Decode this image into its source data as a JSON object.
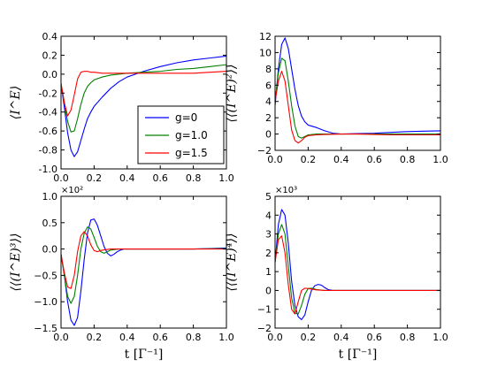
{
  "chart_data": [
    {
      "type": "line",
      "ylabel": "⟨I^E⟩",
      "xlabel": "",
      "xlim": [
        0,
        1.0
      ],
      "ylim": [
        -1.0,
        0.4
      ],
      "xticks": [
        "0.0",
        "0.2",
        "0.4",
        "0.6",
        "0.8",
        "1.0"
      ],
      "yticks": [
        "-1.0",
        "-0.8",
        "-0.6",
        "-0.4",
        "-0.2",
        "0.0",
        "0.2",
        "0.4"
      ],
      "legend": {
        "placement": "lower-right",
        "entries": [
          "g=0",
          "g=1.0",
          "g=1.5"
        ]
      },
      "series": [
        {
          "name": "g=0",
          "color": "#0000ff",
          "x": [
            0,
            0.02,
            0.04,
            0.06,
            0.08,
            0.1,
            0.12,
            0.14,
            0.16,
            0.18,
            0.2,
            0.25,
            0.3,
            0.35,
            0.4,
            0.45,
            0.5,
            0.6,
            0.7,
            0.8,
            0.9,
            1.0
          ],
          "y": [
            -0.1,
            -0.35,
            -0.62,
            -0.8,
            -0.87,
            -0.82,
            -0.7,
            -0.58,
            -0.47,
            -0.4,
            -0.34,
            -0.24,
            -0.15,
            -0.08,
            -0.03,
            0.0,
            0.03,
            0.08,
            0.12,
            0.15,
            0.17,
            0.19
          ]
        },
        {
          "name": "g=1.0",
          "color": "#008000",
          "x": [
            0,
            0.02,
            0.04,
            0.06,
            0.08,
            0.1,
            0.12,
            0.14,
            0.16,
            0.18,
            0.2,
            0.25,
            0.3,
            0.4,
            0.5,
            0.6,
            0.7,
            0.8,
            0.9,
            1.0
          ],
          "y": [
            -0.1,
            -0.3,
            -0.5,
            -0.61,
            -0.6,
            -0.47,
            -0.32,
            -0.2,
            -0.13,
            -0.09,
            -0.06,
            -0.03,
            -0.01,
            0.01,
            0.02,
            0.03,
            0.05,
            0.06,
            0.08,
            0.1
          ]
        },
        {
          "name": "g=1.5",
          "color": "#ff0000",
          "x": [
            0,
            0.02,
            0.04,
            0.06,
            0.08,
            0.1,
            0.12,
            0.14,
            0.16,
            0.18,
            0.2,
            0.25,
            0.3,
            0.4,
            0.5,
            0.6,
            0.7,
            0.8,
            0.9,
            1.0
          ],
          "y": [
            -0.1,
            -0.3,
            -0.44,
            -0.38,
            -0.22,
            -0.05,
            0.02,
            0.03,
            0.03,
            0.02,
            0.02,
            0.01,
            0.01,
            0.01,
            0.01,
            0.01,
            0.01,
            0.01,
            0.02,
            0.03
          ]
        }
      ]
    },
    {
      "type": "line",
      "ylabel": "⟨⟨(I^E)²⟩⟩",
      "xlabel": "",
      "xlim": [
        0,
        1.0
      ],
      "ylim": [
        -2,
        12
      ],
      "xticks": [
        "0.0",
        "0.2",
        "0.4",
        "0.6",
        "0.8",
        "1.0"
      ],
      "yticks": [
        "−2",
        "0",
        "2",
        "4",
        "6",
        "8",
        "10",
        "12"
      ],
      "series": [
        {
          "name": "g=0",
          "color": "#0000ff",
          "x": [
            0,
            0.02,
            0.04,
            0.06,
            0.08,
            0.1,
            0.12,
            0.14,
            0.16,
            0.18,
            0.2,
            0.25,
            0.3,
            0.35,
            0.4,
            0.5,
            0.6,
            0.7,
            0.8,
            0.9,
            1.0
          ],
          "y": [
            3.5,
            8.0,
            11.0,
            11.8,
            10.5,
            8.0,
            5.5,
            3.5,
            2.2,
            1.5,
            1.1,
            0.8,
            0.4,
            0.1,
            0.0,
            0.05,
            0.1,
            0.2,
            0.3,
            0.35,
            0.4
          ]
        },
        {
          "name": "g=1.0",
          "color": "#008000",
          "x": [
            0,
            0.02,
            0.04,
            0.06,
            0.08,
            0.1,
            0.12,
            0.14,
            0.16,
            0.18,
            0.2,
            0.25,
            0.3,
            0.4,
            0.5,
            0.6,
            0.7,
            0.8,
            0.9,
            1.0
          ],
          "y": [
            4.0,
            7.5,
            9.3,
            9.0,
            6.5,
            3.5,
            1.0,
            -0.3,
            -0.5,
            -0.3,
            -0.1,
            0.0,
            0.0,
            0.0,
            0.0,
            0.0,
            0.0,
            0.0,
            0.0,
            0.0
          ]
        },
        {
          "name": "g=1.5",
          "color": "#ff0000",
          "x": [
            0,
            0.02,
            0.04,
            0.06,
            0.08,
            0.1,
            0.12,
            0.14,
            0.16,
            0.18,
            0.2,
            0.25,
            0.3,
            0.4,
            0.5,
            0.6,
            0.7,
            0.8,
            0.9,
            1.0
          ],
          "y": [
            4.0,
            6.5,
            7.7,
            6.5,
            3.5,
            0.5,
            -0.8,
            -1.1,
            -0.8,
            -0.4,
            -0.2,
            -0.1,
            -0.05,
            0.0,
            0.0,
            -0.05,
            -0.1,
            -0.1,
            -0.1,
            -0.1
          ]
        }
      ]
    },
    {
      "type": "line",
      "ylabel": "⟨⟨(I^E)³⟩⟩",
      "xlabel": "t  [Γ⁻¹]",
      "multiplier": "×10²",
      "xlim": [
        0,
        1.0
      ],
      "ylim": [
        -1.5,
        1.0
      ],
      "xticks": [
        "0.0",
        "0.2",
        "0.4",
        "0.6",
        "0.8",
        "1.0"
      ],
      "yticks": [
        "−1.5",
        "−1.0",
        "−0.5",
        "0.0",
        "0.5",
        "1.0"
      ],
      "series": [
        {
          "name": "g=0",
          "color": "#0000ff",
          "x": [
            0,
            0.02,
            0.04,
            0.06,
            0.08,
            0.1,
            0.12,
            0.14,
            0.16,
            0.18,
            0.2,
            0.22,
            0.24,
            0.26,
            0.28,
            0.3,
            0.32,
            0.34,
            0.36,
            0.38,
            0.4,
            0.45,
            0.5,
            0.6,
            0.7,
            0.8,
            0.9,
            1.0
          ],
          "y": [
            -0.1,
            -0.5,
            -1.0,
            -1.35,
            -1.45,
            -1.3,
            -0.8,
            -0.2,
            0.3,
            0.55,
            0.57,
            0.45,
            0.25,
            0.05,
            -0.08,
            -0.13,
            -0.1,
            -0.05,
            -0.02,
            0.0,
            0.0,
            0.0,
            0.0,
            0.0,
            0.0,
            0.0,
            0.01,
            0.02
          ]
        },
        {
          "name": "g=1.0",
          "color": "#008000",
          "x": [
            0,
            0.02,
            0.04,
            0.06,
            0.08,
            0.1,
            0.12,
            0.14,
            0.16,
            0.18,
            0.2,
            0.22,
            0.24,
            0.26,
            0.28,
            0.3,
            0.35,
            0.4,
            0.5,
            0.6,
            0.8,
            1.0
          ],
          "y": [
            -0.1,
            -0.5,
            -0.9,
            -1.03,
            -0.9,
            -0.5,
            0.0,
            0.3,
            0.42,
            0.38,
            0.22,
            0.05,
            -0.05,
            -0.08,
            -0.05,
            -0.02,
            0.0,
            0.0,
            0.0,
            0.0,
            0.0,
            0.01
          ]
        },
        {
          "name": "g=1.5",
          "color": "#ff0000",
          "x": [
            0,
            0.02,
            0.04,
            0.06,
            0.08,
            0.1,
            0.12,
            0.14,
            0.16,
            0.18,
            0.2,
            0.22,
            0.25,
            0.3,
            0.4,
            0.5,
            0.6,
            0.8,
            1.0
          ],
          "y": [
            -0.1,
            -0.45,
            -0.72,
            -0.75,
            -0.5,
            -0.05,
            0.25,
            0.33,
            0.25,
            0.08,
            -0.03,
            -0.05,
            -0.02,
            0.0,
            0.0,
            0.0,
            0.0,
            0.0,
            0.0
          ]
        }
      ]
    },
    {
      "type": "line",
      "ylabel": "⟨⟨(I^E)⁴⟩⟩",
      "xlabel": "t  [Γ⁻¹]",
      "multiplier": "×10³",
      "xlim": [
        0,
        1.0
      ],
      "ylim": [
        -2,
        5
      ],
      "xticks": [
        "0.0",
        "0.2",
        "0.4",
        "0.6",
        "0.8",
        "1.0"
      ],
      "yticks": [
        "−2",
        "−1",
        "0",
        "1",
        "2",
        "3",
        "4",
        "5"
      ],
      "series": [
        {
          "name": "g=0",
          "color": "#0000ff",
          "x": [
            0,
            0.02,
            0.04,
            0.06,
            0.08,
            0.1,
            0.12,
            0.14,
            0.16,
            0.18,
            0.2,
            0.22,
            0.24,
            0.26,
            0.28,
            0.3,
            0.32,
            0.35,
            0.4,
            0.5,
            0.6,
            0.8,
            1.0
          ],
          "y": [
            1.5,
            3.5,
            4.3,
            4.0,
            2.5,
            0.5,
            -0.8,
            -1.4,
            -1.55,
            -1.3,
            -0.6,
            0.0,
            0.25,
            0.32,
            0.28,
            0.15,
            0.05,
            0.0,
            0.0,
            0.0,
            0.0,
            0.0,
            0.0
          ]
        },
        {
          "name": "g=1.0",
          "color": "#008000",
          "x": [
            0,
            0.02,
            0.04,
            0.06,
            0.08,
            0.1,
            0.12,
            0.14,
            0.16,
            0.18,
            0.2,
            0.22,
            0.25,
            0.3,
            0.4,
            0.5,
            0.6,
            0.8,
            1.0
          ],
          "y": [
            1.5,
            3.0,
            3.5,
            3.0,
            1.3,
            -0.4,
            -1.2,
            -1.25,
            -0.8,
            -0.2,
            0.1,
            0.12,
            0.05,
            0.0,
            0.0,
            0.0,
            0.0,
            0.0,
            0.0
          ]
        },
        {
          "name": "g=1.5",
          "color": "#ff0000",
          "x": [
            0,
            0.02,
            0.04,
            0.06,
            0.08,
            0.1,
            0.12,
            0.14,
            0.16,
            0.18,
            0.2,
            0.25,
            0.3,
            0.4,
            0.5,
            0.6,
            0.8,
            1.0
          ],
          "y": [
            1.5,
            2.7,
            2.9,
            2.0,
            0.3,
            -1.0,
            -1.25,
            -0.6,
            0.0,
            0.12,
            0.1,
            0.03,
            0.0,
            0.0,
            0.0,
            0.0,
            0.0,
            0.0
          ]
        }
      ]
    }
  ]
}
